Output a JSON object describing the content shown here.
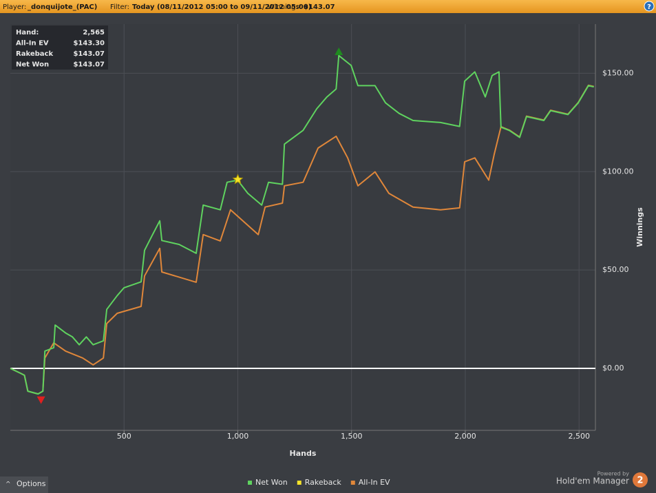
{
  "header": {
    "player_label": "Player:",
    "player": "_donquijote_(PAC)",
    "filter_label": "Filter:",
    "filter": "Today (08/11/2012 05:00 to 09/11/2012 05:00)",
    "winnings_label": "Winnings:",
    "winnings": "$143.07"
  },
  "stats": {
    "rows": [
      [
        "Hand:",
        "2,565"
      ],
      [
        "All-In EV",
        "$143.30"
      ],
      [
        "Rakeback",
        "$143.07"
      ],
      [
        "Net Won",
        "$143.07"
      ]
    ]
  },
  "footer": {
    "options": "Options",
    "powered_by": "Powered by",
    "brand": "Hold'em Manager",
    "brand_number": "2"
  },
  "chart_data": {
    "type": "line",
    "xlabel": "Hands",
    "ylabel": "Winnings",
    "xlim": [
      0,
      2572
    ],
    "ylim": [
      -31.5,
      175
    ],
    "xticks": [
      500,
      {
        "value": 1000,
        "label": "1,000"
      },
      {
        "value": 1500,
        "label": "1,500"
      },
      {
        "value": 2000,
        "label": "2,000"
      },
      {
        "value": 2500,
        "label": "2,500"
      }
    ],
    "yticks": [
      {
        "value": 0,
        "label": "$0.00"
      },
      {
        "value": 50,
        "label": "$50.00"
      },
      {
        "value": 100,
        "label": "$100.00"
      },
      {
        "value": 150,
        "label": "$150.00"
      }
    ],
    "grid": true,
    "zero_line": true,
    "series": [
      {
        "name": "All-In EV",
        "color": "#e0873a",
        "style": "line",
        "x": [
          0,
          45,
          62,
          77,
          122,
          143,
          152,
          191,
          243,
          318,
          364,
          409,
          424,
          470,
          575,
          590,
          657,
          666,
          817,
          848,
          923,
          968,
          1090,
          1120,
          1196,
          1205,
          1287,
          1353,
          1432,
          1483,
          1528,
          1603,
          1664,
          1770,
          1891,
          1975,
          1997,
          2042,
          2103,
          2127,
          2157,
          2194,
          2239,
          2269,
          2345,
          2375,
          2451,
          2496,
          2541,
          2565
        ],
        "values": [
          0,
          -2.5,
          -3.5,
          -11.6,
          -13,
          -11.6,
          5.3,
          13,
          8.8,
          5.3,
          1.8,
          5.3,
          22.8,
          28,
          31.5,
          47,
          61,
          49,
          43.8,
          68,
          64.8,
          80.6,
          68,
          82,
          84,
          92.8,
          94.6,
          112,
          118,
          107,
          92.8,
          99.9,
          89,
          82,
          80.6,
          81.6,
          105,
          107,
          95.7,
          108.7,
          122.8,
          121.1,
          117.6,
          128.2,
          126.2,
          131.2,
          129.2,
          135.1,
          143.9,
          143.3
        ]
      },
      {
        "name": "Net Won",
        "color": "#5fd35f",
        "style": "line",
        "x": [
          0,
          45,
          62,
          77,
          122,
          143,
          152,
          191,
          197,
          243,
          273,
          303,
          334,
          364,
          409,
          424,
          470,
          500,
          575,
          590,
          621,
          657,
          666,
          742,
          817,
          848,
          923,
          953,
          999,
          1044,
          1105,
          1135,
          1196,
          1205,
          1287,
          1347,
          1392,
          1432,
          1444,
          1498,
          1528,
          1603,
          1649,
          1709,
          1770,
          1891,
          1975,
          1997,
          2042,
          2088,
          2118,
          2148,
          2157,
          2194,
          2239,
          2269,
          2345,
          2375,
          2451,
          2496,
          2541,
          2565
        ],
        "values": [
          0,
          -2.5,
          -3.5,
          -11.6,
          -13,
          -11.6,
          8.8,
          10.5,
          22,
          18,
          16,
          12,
          16,
          12,
          14,
          30,
          37,
          41,
          44,
          60,
          67,
          75,
          65,
          63,
          58.5,
          83,
          80.6,
          94.6,
          95.7,
          89,
          83,
          94.6,
          93.6,
          114,
          121,
          132,
          138,
          142,
          159,
          154,
          143.7,
          143.7,
          135,
          129.6,
          126,
          125,
          123,
          146,
          150.7,
          138,
          148.9,
          150.7,
          122.6,
          120.9,
          117.4,
          128,
          126,
          131,
          129,
          134.9,
          143.7,
          143.07
        ]
      },
      {
        "name": "Rakeback",
        "color": "#f5e32a",
        "style": "star",
        "x": [
          1000
        ],
        "values": [
          96
        ]
      }
    ],
    "markers": [
      {
        "shape": "triangle-down",
        "color": "#e02020",
        "x": 135,
        "y": -16
      },
      {
        "shape": "triangle-up",
        "color": "#1f8a1f",
        "x": 1444,
        "y": 161
      }
    ]
  }
}
